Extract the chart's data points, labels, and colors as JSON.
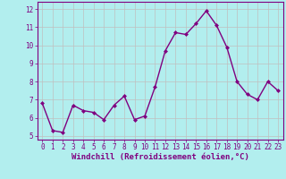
{
  "x": [
    0,
    1,
    2,
    3,
    4,
    5,
    6,
    7,
    8,
    9,
    10,
    11,
    12,
    13,
    14,
    15,
    16,
    17,
    18,
    19,
    20,
    21,
    22,
    23
  ],
  "y": [
    6.8,
    5.3,
    5.2,
    6.7,
    6.4,
    6.3,
    5.9,
    6.7,
    7.2,
    5.9,
    6.1,
    7.7,
    9.7,
    10.7,
    10.6,
    11.2,
    11.9,
    11.1,
    9.9,
    8.0,
    7.3,
    7.0,
    8.0,
    7.5
  ],
  "line_color": "#800080",
  "marker": "D",
  "marker_size": 2.0,
  "bg_color": "#b2eeee",
  "grid_color": "#c0c0c0",
  "xlabel": "Windchill (Refroidissement éolien,°C)",
  "xlim": [
    -0.5,
    23.5
  ],
  "ylim": [
    4.8,
    12.4
  ],
  "yticks": [
    5,
    6,
    7,
    8,
    9,
    10,
    11,
    12
  ],
  "xticks": [
    0,
    1,
    2,
    3,
    4,
    5,
    6,
    7,
    8,
    9,
    10,
    11,
    12,
    13,
    14,
    15,
    16,
    17,
    18,
    19,
    20,
    21,
    22,
    23
  ],
  "tick_label_fontsize": 5.5,
  "xlabel_fontsize": 6.5,
  "spine_color": "#800080",
  "line_width": 1.0
}
